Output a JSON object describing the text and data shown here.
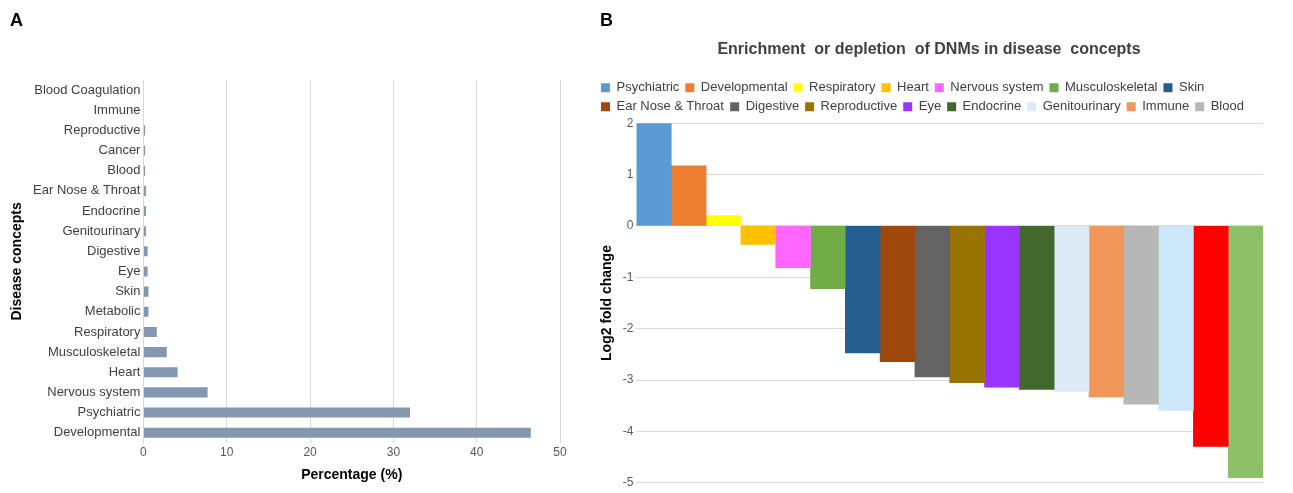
{
  "chart_data": [
    {
      "type": "bar",
      "orientation": "horizontal",
      "annotations": [
        "A"
      ],
      "xlabel": "Percentage (%)",
      "ylabel": "Disease concepts",
      "categories": [
        "Blood Coagulation",
        "Immune",
        "Reproductive",
        "Cancer",
        "Blood",
        "Ear Nose & Throat",
        "Endocrine",
        "Genitourinary",
        "Digestive",
        "Eye",
        "Skin",
        "Metabolic",
        "Respiratory",
        "Musculoskeletal",
        "Heart",
        "Nervous system",
        "Psychiatric",
        "Developmental"
      ],
      "values": [
        0,
        0,
        0.2,
        0.2,
        0.2,
        0.3,
        0.3,
        0.3,
        0.5,
        0.5,
        0.6,
        0.6,
        1.6,
        2.8,
        4.1,
        7.7,
        32.0,
        46.5
      ],
      "color": "#8497b0",
      "xlim": [
        0,
        50
      ],
      "xticks": [
        0,
        10,
        20,
        30,
        40,
        50
      ],
      "grid": "x",
      "legend": false
    },
    {
      "type": "bar",
      "title": "Enrichment  or depletion  of DNMs in disease  concepts",
      "annotations": [
        "B"
      ],
      "ylabel": "Log2 fold change",
      "categories": [
        null,
        null,
        null,
        null,
        null,
        null,
        null,
        null,
        null,
        null,
        null,
        null,
        null,
        null,
        null,
        null,
        null,
        null
      ],
      "series": [
        {
          "name": "Psychiatric",
          "color": "#5b9bd5",
          "values": [
            2.0,
            null,
            null,
            null,
            null,
            null,
            null,
            null,
            null,
            null,
            null,
            null,
            null,
            null,
            null,
            null,
            null,
            null
          ]
        },
        {
          "name": "Developmental",
          "color": "#ed7d31",
          "values": [
            null,
            1.17,
            null,
            null,
            null,
            null,
            null,
            null,
            null,
            null,
            null,
            null,
            null,
            null,
            null,
            null,
            null,
            null
          ]
        },
        {
          "name": "Respiratory",
          "color": "#ffff00",
          "values": [
            null,
            null,
            0.2,
            null,
            null,
            null,
            null,
            null,
            null,
            null,
            null,
            null,
            null,
            null,
            null,
            null,
            null,
            null
          ]
        },
        {
          "name": "Heart",
          "color": "#ffc000",
          "values": [
            null,
            null,
            null,
            -0.36,
            null,
            null,
            null,
            null,
            null,
            null,
            null,
            null,
            null,
            null,
            null,
            null,
            null,
            null
          ]
        },
        {
          "name": "Nervous system",
          "color": "#ff66ff",
          "values": [
            null,
            null,
            null,
            null,
            -0.81,
            null,
            null,
            null,
            null,
            null,
            null,
            null,
            null,
            null,
            null,
            null,
            null,
            null
          ]
        },
        {
          "name": "Musculoskeletal",
          "color": "#70ad47",
          "values": [
            null,
            null,
            null,
            null,
            null,
            -1.22,
            null,
            null,
            null,
            null,
            null,
            null,
            null,
            null,
            null,
            null,
            null,
            null
          ]
        },
        {
          "name": "Skin",
          "color": "#255e91",
          "values": [
            null,
            null,
            null,
            null,
            null,
            null,
            -2.47,
            null,
            null,
            null,
            null,
            null,
            null,
            null,
            null,
            null,
            null,
            null
          ]
        },
        {
          "name": "Ear Nose & Throat",
          "color": "#9e480e",
          "values": [
            null,
            null,
            null,
            null,
            null,
            null,
            null,
            -2.64,
            null,
            null,
            null,
            null,
            null,
            null,
            null,
            null,
            null,
            null
          ]
        },
        {
          "name": "Digestive",
          "color": "#636363",
          "values": [
            null,
            null,
            null,
            null,
            null,
            null,
            null,
            null,
            -2.94,
            null,
            null,
            null,
            null,
            null,
            null,
            null,
            null,
            null
          ]
        },
        {
          "name": "Reproductive",
          "color": "#997300",
          "values": [
            null,
            null,
            null,
            null,
            null,
            null,
            null,
            null,
            null,
            -3.05,
            null,
            null,
            null,
            null,
            null,
            null,
            null,
            null
          ]
        },
        {
          "name": "Eye",
          "color": "#9933ff",
          "values": [
            null,
            null,
            null,
            null,
            null,
            null,
            null,
            null,
            null,
            null,
            -3.14,
            null,
            null,
            null,
            null,
            null,
            null,
            null
          ]
        },
        {
          "name": "Endocrine",
          "color": "#43682b",
          "values": [
            null,
            null,
            null,
            null,
            null,
            null,
            null,
            null,
            null,
            null,
            null,
            -3.18,
            null,
            null,
            null,
            null,
            null,
            null
          ]
        },
        {
          "name": "Genitourinary",
          "color": "#deebf7",
          "values": [
            null,
            null,
            null,
            null,
            null,
            null,
            null,
            null,
            null,
            null,
            null,
            null,
            -3.22,
            null,
            null,
            null,
            null,
            null
          ]
        },
        {
          "name": "Immune",
          "color": "#f1975a",
          "values": [
            null,
            null,
            null,
            null,
            null,
            null,
            null,
            null,
            null,
            null,
            null,
            null,
            null,
            -3.33,
            null,
            null,
            null,
            null
          ]
        },
        {
          "name": "Blood",
          "color": "#b7b7b7",
          "values": [
            null,
            null,
            null,
            null,
            null,
            null,
            null,
            null,
            null,
            null,
            null,
            null,
            null,
            null,
            -3.47,
            null,
            null,
            null
          ]
        },
        {
          "color": "#cce7fa",
          "values": [
            null,
            null,
            null,
            null,
            null,
            null,
            null,
            null,
            null,
            null,
            null,
            null,
            null,
            null,
            null,
            -3.59,
            null,
            null
          ]
        },
        {
          "color": "#ff0000",
          "values": [
            null,
            null,
            null,
            null,
            null,
            null,
            null,
            null,
            null,
            null,
            null,
            null,
            null,
            null,
            null,
            null,
            -4.29,
            null
          ]
        },
        {
          "color": "#8cc168",
          "values": [
            null,
            null,
            null,
            null,
            null,
            null,
            null,
            null,
            null,
            null,
            null,
            null,
            null,
            null,
            null,
            null,
            null,
            -4.9
          ]
        }
      ],
      "ylim": [
        -5,
        2
      ],
      "yticks": [
        -5,
        -4,
        -3,
        -2,
        -1,
        0,
        1,
        2
      ],
      "grid": "y",
      "legend": "top"
    }
  ]
}
